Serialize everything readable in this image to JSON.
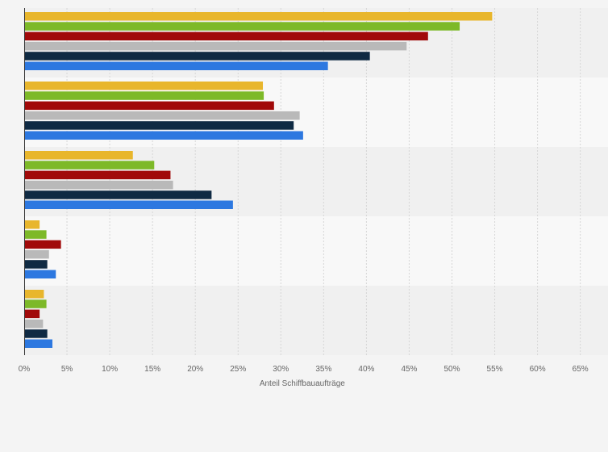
{
  "chart_data": {
    "type": "bar",
    "orientation": "horizontal",
    "title": "",
    "xlabel": "Anteil Schiffbauaufträge",
    "ylabel": "",
    "xlim": [
      0,
      65
    ],
    "x_ticks": [
      "0%",
      "5%",
      "10%",
      "15%",
      "20%",
      "25%",
      "30%",
      "35%",
      "40%",
      "45%",
      "50%",
      "55%",
      "60%",
      "65%"
    ],
    "grid": true,
    "legend": "none",
    "categories": [
      "",
      "",
      "",
      "",
      ""
    ],
    "series": [
      {
        "color": "#e8b62c",
        "values": [
          54.7,
          27.9,
          12.7,
          1.8,
          2.3
        ]
      },
      {
        "color": "#7db928",
        "values": [
          50.9,
          28.0,
          15.2,
          2.6,
          2.6
        ]
      },
      {
        "color": "#a10a0a",
        "values": [
          47.2,
          29.2,
          17.1,
          4.3,
          1.8
        ]
      },
      {
        "color": "#b9b9b9",
        "values": [
          44.7,
          32.2,
          17.4,
          2.9,
          2.2
        ]
      },
      {
        "color": "#0f2a43",
        "values": [
          40.4,
          31.5,
          21.9,
          2.7,
          2.7
        ]
      },
      {
        "color": "#2d78e0",
        "values": [
          35.5,
          32.6,
          24.4,
          3.7,
          3.3
        ]
      }
    ]
  }
}
